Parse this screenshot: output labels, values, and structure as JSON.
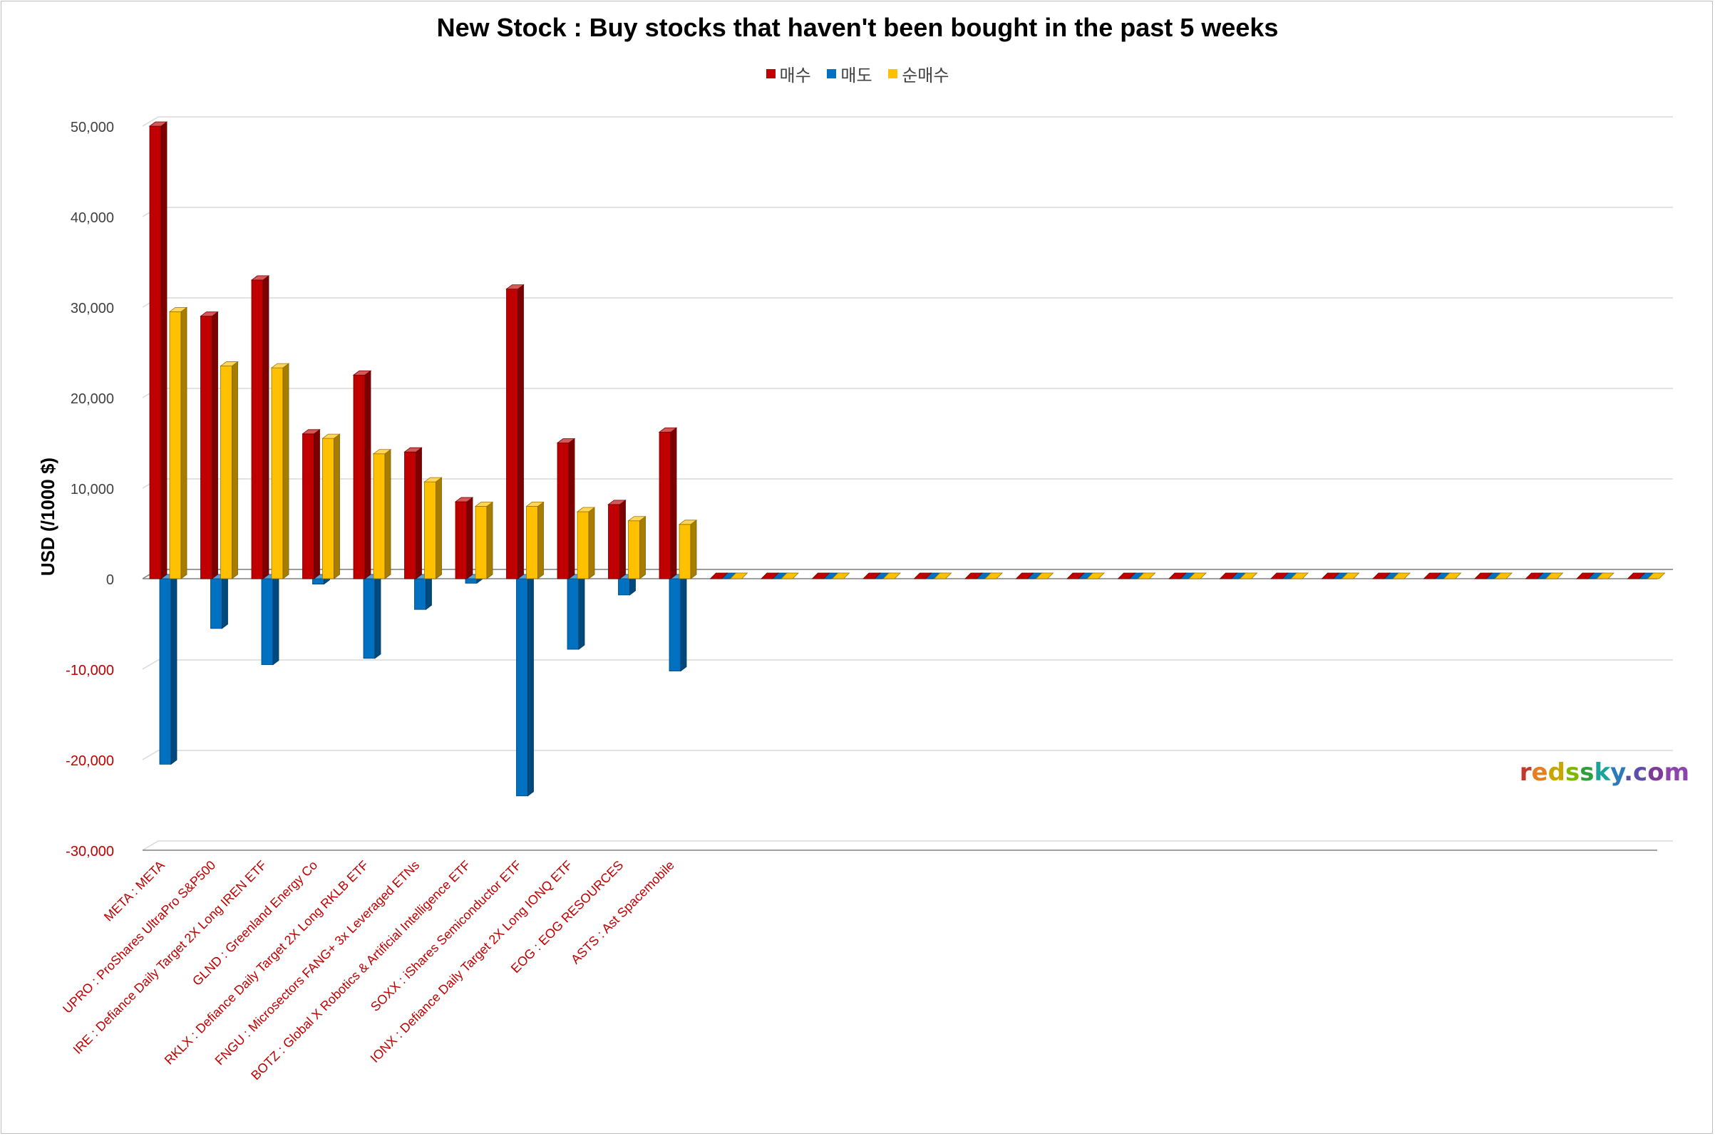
{
  "title": "New Stock : Buy stocks that haven't been bought in the past 5 weeks",
  "watermark": {
    "text": "redssky.com",
    "letters": [
      {
        "ch": "r",
        "color": "#c0392b"
      },
      {
        "ch": "e",
        "color": "#e67e22"
      },
      {
        "ch": "d",
        "color": "#c9a500"
      },
      {
        "ch": "s",
        "color": "#7fb800"
      },
      {
        "ch": "s",
        "color": "#2e9e3e"
      },
      {
        "ch": "k",
        "color": "#1aa39a"
      },
      {
        "ch": "y",
        "color": "#2b7bb9"
      },
      {
        "ch": ".",
        "color": "#5b4fa8"
      },
      {
        "ch": "c",
        "color": "#5b4fa8"
      },
      {
        "ch": "o",
        "color": "#7d3c98"
      },
      {
        "ch": "m",
        "color": "#8e44ad"
      }
    ]
  },
  "chart_data": {
    "type": "bar",
    "variant": "3d-clustered-column",
    "title": "New Stock : Buy stocks that haven't been bought in the past 5 weeks",
    "ylabel": "USD (/1000 $)",
    "xlabel": "",
    "ylim": [
      -30000,
      50000
    ],
    "yticks": [
      50000,
      40000,
      30000,
      20000,
      10000,
      0,
      -10000,
      -20000,
      -30000
    ],
    "ytick_labels": [
      "50,000",
      "40,000",
      "30,000",
      "20,000",
      "10,000",
      "0",
      "-10,000",
      "-20,000",
      "-30,000"
    ],
    "negative_tick_color": "#c00000",
    "category_label_color": "#c00000",
    "grid": true,
    "legend_position": "top",
    "categories": [
      "META : META",
      "UPRO : ProShares UltraPro S&P500",
      "IRE : Defiance Daily Target 2X Long IREN ETF",
      "GLND : Greenland Energy Co",
      "RKLX : Defiance Daily Target 2X Long RKLB ETF",
      "FNGU : Microsectors FANG+ 3x Leveraged ETNs",
      "BOTZ : Global X Robotics & Artificial Intelligence ETF",
      "SOXX : iShares Semiconductor ETF",
      "IONX : Defiance Daily Target 2X Long IONQ ETF",
      "EOG : EOG RESOURCES",
      "ASTS : Ast Spacemobile",
      "",
      "",
      "",
      "",
      "",
      "",
      "",
      "",
      "",
      "",
      "",
      "",
      "",
      "",
      "",
      "",
      "",
      "",
      ""
    ],
    "series": [
      {
        "name": "매수",
        "color": "#c00000",
        "values": [
          50000,
          29000,
          33000,
          16000,
          22500,
          14000,
          8500,
          32000,
          15000,
          8200,
          16200,
          0,
          0,
          0,
          0,
          0,
          0,
          0,
          0,
          0,
          0,
          0,
          0,
          0,
          0,
          0,
          0,
          0,
          0,
          0
        ]
      },
      {
        "name": "매도",
        "color": "#0070c0",
        "values": [
          -20500,
          -5500,
          -9500,
          -600,
          -8800,
          -3400,
          -500,
          -24000,
          -7800,
          -1800,
          -10200,
          0,
          0,
          0,
          0,
          0,
          0,
          0,
          0,
          0,
          0,
          0,
          0,
          0,
          0,
          0,
          0,
          0,
          0,
          0
        ]
      },
      {
        "name": "순매수",
        "color": "#ffc000",
        "values": [
          29500,
          23500,
          23300,
          15500,
          13800,
          10700,
          8000,
          8000,
          7400,
          6400,
          6000,
          0,
          0,
          0,
          0,
          0,
          0,
          0,
          0,
          0,
          0,
          0,
          0,
          0,
          0,
          0,
          0,
          0,
          0,
          0
        ]
      }
    ]
  }
}
